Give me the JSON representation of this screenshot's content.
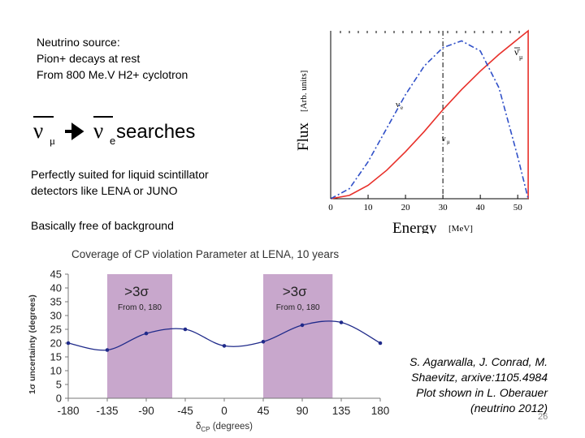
{
  "source": {
    "line1": "Neutrino source:",
    "line2": "Pion+ decays at rest",
    "line3": "From 800 Me.V H2+ cyclotron"
  },
  "searches": {
    "from_symbol": "ν",
    "from_sub": "μ",
    "to_symbol": "ν",
    "to_sub": "e",
    "label": "searches"
  },
  "suited": {
    "line1": "Perfectly suited for liquid scintillator",
    "line2": "detectors like LENA or JUNO"
  },
  "background_text": "Basically free of background",
  "citation": {
    "line1": "S. Agarwalla, J. Conrad, M.",
    "line2": "Shaevitz, arxive:1105.4984",
    "line3": "Plot shown in L. Oberauer",
    "line4": "(neutrino 2012)"
  },
  "page_number": "26",
  "colors": {
    "red": "#e8302a",
    "blue": "#3050c8",
    "navy": "#1f2a8a",
    "band": "#c8a7cc"
  },
  "chart_data": [
    {
      "type": "line",
      "title": "",
      "xlabel": "Energy",
      "xlabel_unit": "[MeV]",
      "ylabel": "Flux",
      "ylabel_unit": "[Arb. units]",
      "xlim": [
        0,
        53
      ],
      "ylim": [
        0,
        1
      ],
      "x_ticks": [
        "0",
        "10",
        "20",
        "30",
        "40",
        "50"
      ],
      "vline_x": 30,
      "series": [
        {
          "name": "ν̄μ",
          "label_text": "ν̄",
          "label_sub": "μ",
          "color": "#e8302a",
          "style": "solid",
          "x": [
            0,
            5,
            10,
            15,
            20,
            25,
            30,
            35,
            40,
            45,
            50,
            52.8,
            52.8
          ],
          "y": [
            0,
            0.02,
            0.08,
            0.17,
            0.28,
            0.4,
            0.53,
            0.65,
            0.76,
            0.86,
            0.95,
            1.0,
            0
          ]
        },
        {
          "name": "νe",
          "label_text": "ν",
          "label_sub": "e",
          "color": "#3050c8",
          "style": "dashdot",
          "x": [
            0,
            5,
            10,
            15,
            20,
            25,
            30,
            35,
            40,
            45,
            50,
            52.8
          ],
          "y": [
            0,
            0.06,
            0.22,
            0.42,
            0.62,
            0.79,
            0.9,
            0.94,
            0.88,
            0.66,
            0.25,
            0
          ]
        },
        {
          "name": "νμ",
          "label_text": "ν",
          "label_sub": "μ",
          "color": "#000000",
          "style": "dotted-vline",
          "x": [
            30
          ],
          "y": [
            1
          ]
        }
      ]
    },
    {
      "type": "line",
      "title": "Coverage of CP violation Parameter at LENA, 10 years",
      "xlabel": "δCP (degrees)",
      "xlabel_main": "δ",
      "xlabel_sub": "CP",
      "xlabel_rest": " (degrees)",
      "ylabel": "1σ uncertainty (degrees)",
      "xlim": [
        -180,
        180
      ],
      "ylim": [
        0,
        45
      ],
      "x_ticks": [
        -180,
        -135,
        -90,
        -45,
        0,
        45,
        90,
        135,
        180
      ],
      "y_ticks": [
        0,
        5,
        10,
        15,
        20,
        25,
        30,
        35,
        40,
        45
      ],
      "series": [
        {
          "name": "LENA 10 years",
          "color": "#1f2a8a",
          "x": [
            -180,
            -135,
            -90,
            -45,
            0,
            45,
            90,
            135,
            180
          ],
          "y": [
            20,
            17.5,
            23.5,
            25,
            19,
            20.5,
            26.5,
            27.5,
            20
          ]
        }
      ],
      "bands": [
        {
          "from": -135,
          "to": -60,
          "label": ">3σ",
          "sub": "From 0, 180"
        },
        {
          "from": 45,
          "to": 125,
          "label": ">3σ",
          "sub": "From 0, 180"
        }
      ]
    }
  ]
}
